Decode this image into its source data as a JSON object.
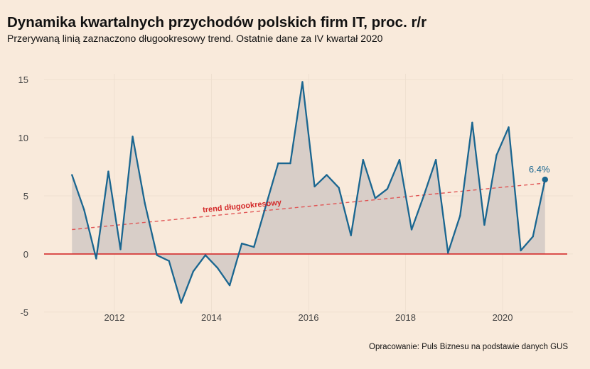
{
  "title": "Dynamika kwartalnych przychodów polskich firm IT, proc. r/r",
  "subtitle": "Przerywaną linią zaznaczono długookresowy trend. Ostatnie dane za IV kwartał 2020",
  "source": "Opracowanie: Puls Biznesu na podstawie danych GUS",
  "colors": {
    "background": "#f9eadb",
    "line": "#1a6690",
    "area": "#d8cec8",
    "trend": "#e05555",
    "zero_line": "#d42a2a",
    "grid": "#efe0d0"
  },
  "chart_data": {
    "type": "area",
    "title": "Dynamika kwartalnych przychodów polskich firm IT, proc. r/r",
    "xlabel": "",
    "ylabel": "",
    "xlim": [
      2010.55,
      2021.45
    ],
    "ylim": [
      -5.5,
      15.5
    ],
    "x_ticks": [
      2012,
      2014,
      2016,
      2018,
      2020
    ],
    "y_ticks": [
      -5,
      0,
      5,
      10,
      15
    ],
    "grid": true,
    "x": [
      2011.125,
      2011.375,
      2011.625,
      2011.875,
      2012.125,
      2012.375,
      2012.625,
      2012.875,
      2013.125,
      2013.375,
      2013.625,
      2013.875,
      2014.125,
      2014.375,
      2014.625,
      2014.875,
      2015.125,
      2015.375,
      2015.625,
      2015.875,
      2016.125,
      2016.375,
      2016.625,
      2016.875,
      2017.125,
      2017.375,
      2017.625,
      2017.875,
      2018.125,
      2018.375,
      2018.625,
      2018.875,
      2019.125,
      2019.375,
      2019.625,
      2019.875,
      2020.125,
      2020.375,
      2020.625,
      2020.875
    ],
    "series": [
      {
        "values": [
          6.8,
          3.8,
          -0.4,
          7.1,
          0.4,
          10.1,
          4.4,
          -0.1,
          -0.6,
          -4.2,
          -1.5,
          -0.1,
          -1.2,
          -2.7,
          0.9,
          0.6,
          4.2,
          7.8,
          7.8,
          14.8,
          5.8,
          6.8,
          5.7,
          1.6,
          8.1,
          4.8,
          5.6,
          8.1,
          2.1,
          5.0,
          8.1,
          0.1,
          3.3,
          11.3,
          2.5,
          8.5,
          10.9,
          0.3,
          1.5,
          6.4
        ]
      }
    ],
    "trend": {
      "label": "trend długookresowy",
      "x": [
        2011.125,
        2020.875
      ],
      "y": [
        2.1,
        6.1
      ]
    },
    "last_point": {
      "x": 2020.875,
      "y": 6.4,
      "label": "6.4%"
    }
  }
}
